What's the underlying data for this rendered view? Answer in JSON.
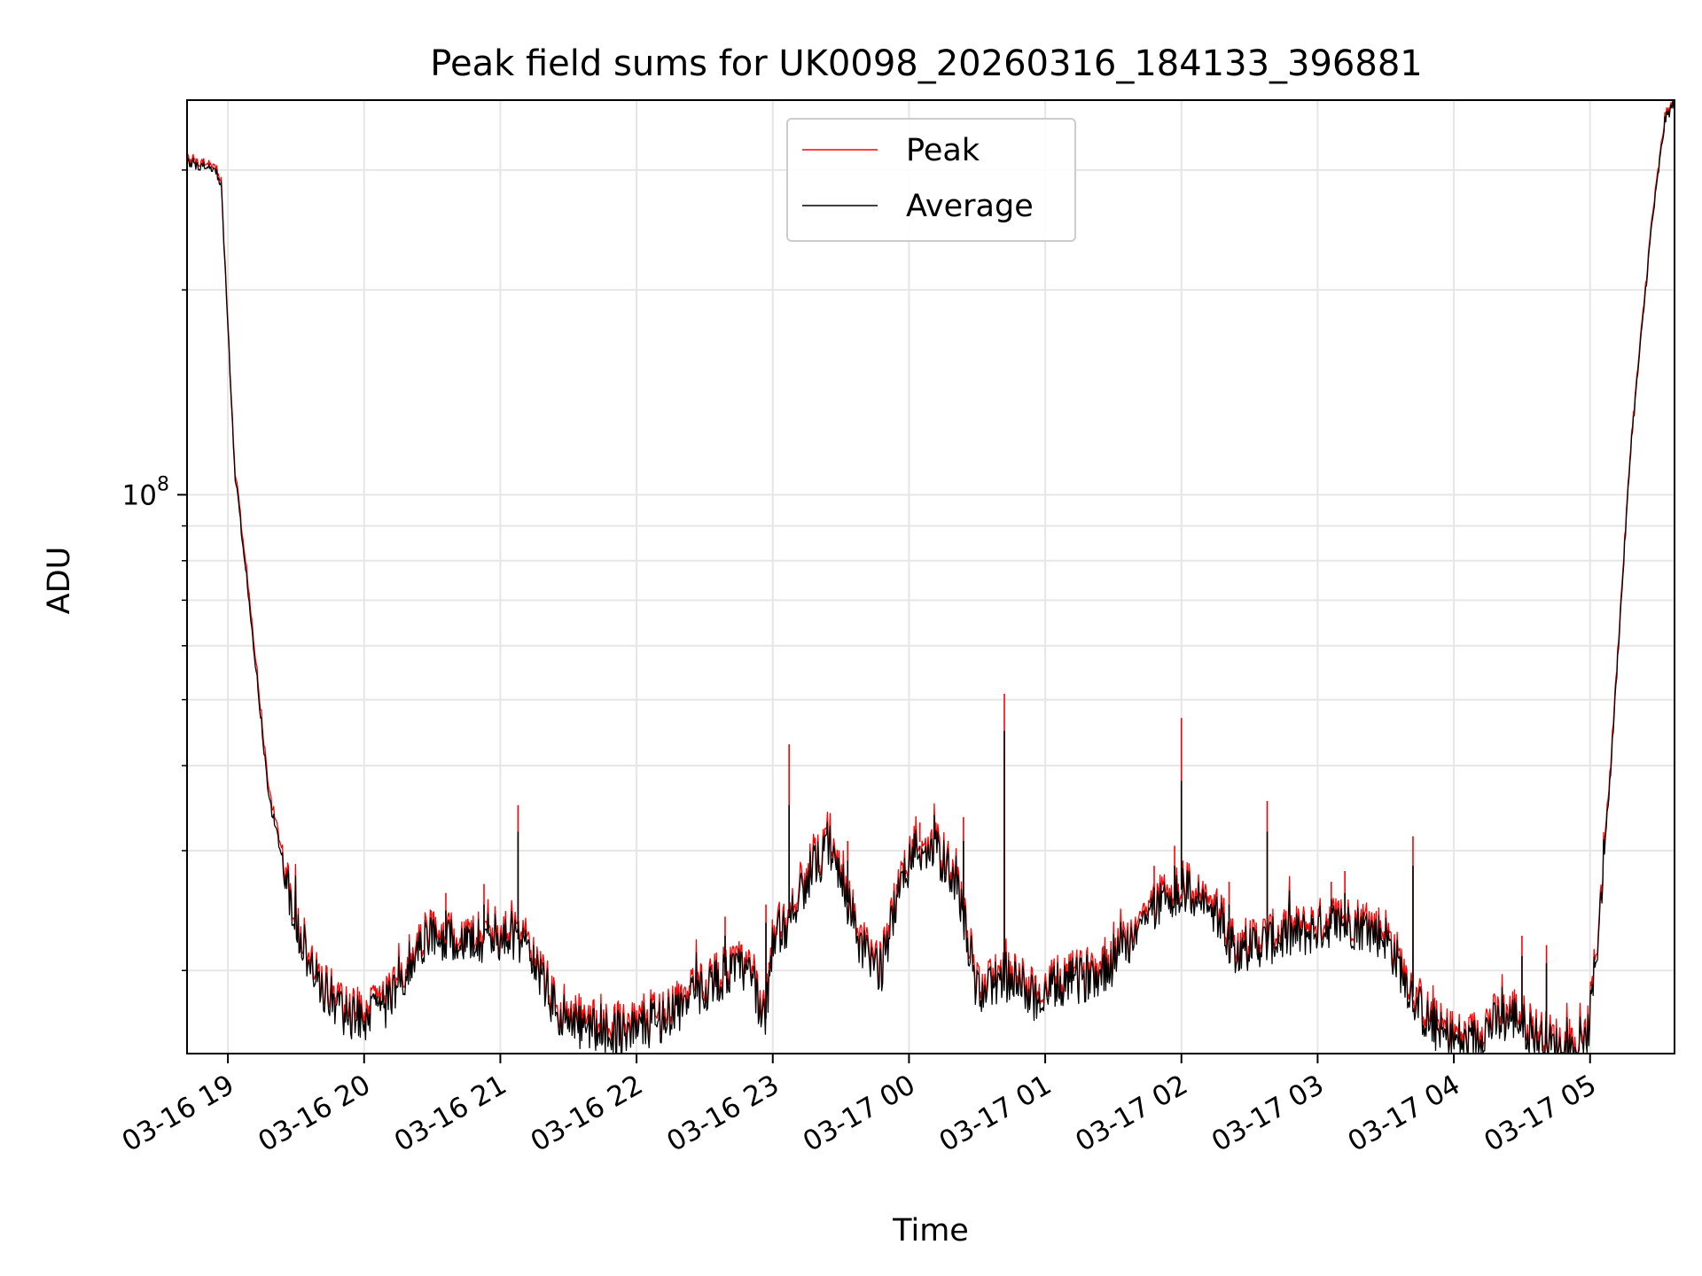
{
  "chart_data": {
    "type": "line",
    "title": "Peak field sums for UK0098_20260316_184133_396881",
    "xlabel": "Time",
    "ylabel": "ADU",
    "yscale": "log",
    "ylim": [
      15100000,
      380000000
    ],
    "xlim_hours_since_0316_0000": [
      18.7,
      29.62
    ],
    "grid": true,
    "legend_position": "top-center",
    "x_ticks": [
      {
        "hour": 19,
        "label": "03-16 19"
      },
      {
        "hour": 20,
        "label": "03-16 20"
      },
      {
        "hour": 21,
        "label": "03-16 21"
      },
      {
        "hour": 22,
        "label": "03-16 22"
      },
      {
        "hour": 23,
        "label": "03-16 23"
      },
      {
        "hour": 24,
        "label": "03-17 00"
      },
      {
        "hour": 25,
        "label": "03-17 01"
      },
      {
        "hour": 26,
        "label": "03-17 02"
      },
      {
        "hour": 27,
        "label": "03-17 03"
      },
      {
        "hour": 28,
        "label": "03-17 04"
      },
      {
        "hour": 29,
        "label": "03-17 05"
      }
    ],
    "y_major_tick": {
      "value": 100000000,
      "base": "10",
      "exp": "8"
    },
    "y_minor_ticks": [
      20000000,
      30000000,
      40000000,
      50000000,
      60000000,
      70000000,
      80000000,
      90000000,
      200000000,
      300000000
    ],
    "series": [
      {
        "name": "Peak",
        "color": "#ff0000",
        "baseline_hours": [
          18.7,
          18.9,
          18.95,
          19.05,
          19.15,
          19.3,
          19.5,
          19.65,
          19.85,
          20.0,
          20.2,
          20.35,
          20.5,
          20.7,
          20.9,
          21.05,
          21.2,
          21.35,
          21.45,
          21.6,
          21.8,
          22.0,
          22.2,
          22.4,
          22.6,
          22.8,
          22.95,
          23.0,
          23.1,
          23.25,
          23.4,
          23.5,
          23.65,
          23.8,
          23.9,
          24.05,
          24.2,
          24.35,
          24.5,
          24.6,
          24.7,
          24.85,
          24.95,
          25.1,
          25.3,
          25.5,
          25.7,
          25.9,
          26.0,
          26.2,
          26.4,
          26.55,
          26.7,
          26.9,
          27.1,
          27.3,
          27.5,
          27.7,
          27.8,
          27.9,
          28.1,
          28.25,
          28.45,
          28.6,
          28.8,
          28.95,
          29.0,
          29.05,
          29.15,
          29.3,
          29.45,
          29.55,
          29.62
        ],
        "baseline_values": [
          312000000,
          305000000,
          290000000,
          110000000,
          74000000,
          37000000,
          24000000,
          20000000,
          17800000,
          17500000,
          18500000,
          21500000,
          23000000,
          22500000,
          22800000,
          23200000,
          22500000,
          19000000,
          17200000,
          17000000,
          16700000,
          16900000,
          17500000,
          18600000,
          20000000,
          20600000,
          17500000,
          22800000,
          24000000,
          28000000,
          30500000,
          28000000,
          22000000,
          20500000,
          26000000,
          31000000,
          30500000,
          28000000,
          19000000,
          19400000,
          20000000,
          19300000,
          18500000,
          19500000,
          20000000,
          21000000,
          24000000,
          26500000,
          27000000,
          25500000,
          22000000,
          22400000,
          22800000,
          23200000,
          24000000,
          23800000,
          23000000,
          18800000,
          17400000,
          16600000,
          15900000,
          17000000,
          17600000,
          16400000,
          15700000,
          15300000,
          17500000,
          22000000,
          40000000,
          120000000,
          250000000,
          360000000,
          380000000
        ],
        "spikes": [
          {
            "hour": 20.6,
            "value": 26000000
          },
          {
            "hour": 20.88,
            "value": 26800000
          },
          {
            "hour": 21.13,
            "value": 35000000
          },
          {
            "hour": 22.65,
            "value": 24000000
          },
          {
            "hour": 22.95,
            "value": 25000000
          },
          {
            "hour": 23.12,
            "value": 43000000
          },
          {
            "hour": 23.55,
            "value": 31000000
          },
          {
            "hour": 24.08,
            "value": 33000000
          },
          {
            "hour": 24.4,
            "value": 33600000
          },
          {
            "hour": 24.7,
            "value": 51000000
          },
          {
            "hour": 25.8,
            "value": 28500000
          },
          {
            "hour": 25.95,
            "value": 30500000
          },
          {
            "hour": 26.0,
            "value": 47000000
          },
          {
            "hour": 26.35,
            "value": 27000000
          },
          {
            "hour": 26.63,
            "value": 35500000
          },
          {
            "hour": 27.1,
            "value": 27000000
          },
          {
            "hour": 27.2,
            "value": 28000000
          },
          {
            "hour": 27.7,
            "value": 31500000
          },
          {
            "hour": 28.5,
            "value": 22500000
          },
          {
            "hour": 28.68,
            "value": 21800000
          }
        ]
      },
      {
        "name": "Average",
        "color": "#000000",
        "baseline_hours": [
          18.7,
          18.9,
          18.95,
          19.05,
          19.15,
          19.3,
          19.5,
          19.65,
          19.85,
          20.0,
          20.2,
          20.35,
          20.5,
          20.7,
          20.9,
          21.05,
          21.2,
          21.35,
          21.45,
          21.6,
          21.8,
          22.0,
          22.2,
          22.4,
          22.6,
          22.8,
          22.95,
          23.0,
          23.1,
          23.25,
          23.4,
          23.5,
          23.65,
          23.8,
          23.9,
          24.05,
          24.2,
          24.35,
          24.5,
          24.6,
          24.7,
          24.85,
          24.95,
          25.1,
          25.3,
          25.5,
          25.7,
          25.9,
          26.0,
          26.2,
          26.4,
          26.55,
          26.7,
          26.9,
          27.1,
          27.3,
          27.5,
          27.7,
          27.8,
          27.9,
          28.1,
          28.25,
          28.45,
          28.6,
          28.8,
          28.95,
          29.0,
          29.05,
          29.15,
          29.3,
          29.45,
          29.55,
          29.62
        ],
        "baseline_values": [
          308000000,
          301000000,
          286000000,
          108000000,
          72000000,
          36000000,
          23500000,
          19500000,
          17300000,
          17000000,
          18000000,
          21000000,
          22400000,
          22000000,
          22200000,
          22600000,
          21900000,
          18500000,
          16800000,
          16500000,
          16200000,
          16400000,
          17000000,
          18100000,
          19500000,
          20100000,
          17000000,
          22200000,
          23400000,
          27300000,
          29800000,
          27300000,
          21400000,
          20000000,
          25300000,
          30200000,
          29700000,
          27300000,
          18500000,
          18900000,
          19500000,
          18800000,
          18000000,
          19000000,
          19500000,
          20400000,
          23400000,
          25800000,
          26300000,
          24800000,
          21400000,
          21800000,
          22200000,
          22600000,
          23400000,
          23200000,
          22400000,
          18300000,
          16900000,
          16100000,
          15500000,
          16500000,
          17100000,
          15900000,
          15200000,
          14900000,
          17000000,
          21500000,
          39000000,
          118000000,
          246000000,
          355000000,
          378000000
        ],
        "spikes": [
          {
            "hour": 20.6,
            "value": 24500000
          },
          {
            "hour": 20.88,
            "value": 25000000
          },
          {
            "hour": 21.13,
            "value": 32000000
          },
          {
            "hour": 22.65,
            "value": 22500000
          },
          {
            "hour": 22.95,
            "value": 23500000
          },
          {
            "hour": 23.12,
            "value": 35000000
          },
          {
            "hour": 23.55,
            "value": 29000000
          },
          {
            "hour": 24.08,
            "value": 30500000
          },
          {
            "hour": 24.4,
            "value": 31000000
          },
          {
            "hour": 24.7,
            "value": 45000000
          },
          {
            "hour": 25.8,
            "value": 26500000
          },
          {
            "hour": 25.95,
            "value": 28500000
          },
          {
            "hour": 26.0,
            "value": 38000000
          },
          {
            "hour": 26.35,
            "value": 25000000
          },
          {
            "hour": 26.63,
            "value": 32000000
          },
          {
            "hour": 27.1,
            "value": 25500000
          },
          {
            "hour": 27.2,
            "value": 26000000
          },
          {
            "hour": 27.7,
            "value": 28500000
          },
          {
            "hour": 28.5,
            "value": 21000000
          },
          {
            "hour": 28.68,
            "value": 20500000
          }
        ]
      }
    ]
  }
}
